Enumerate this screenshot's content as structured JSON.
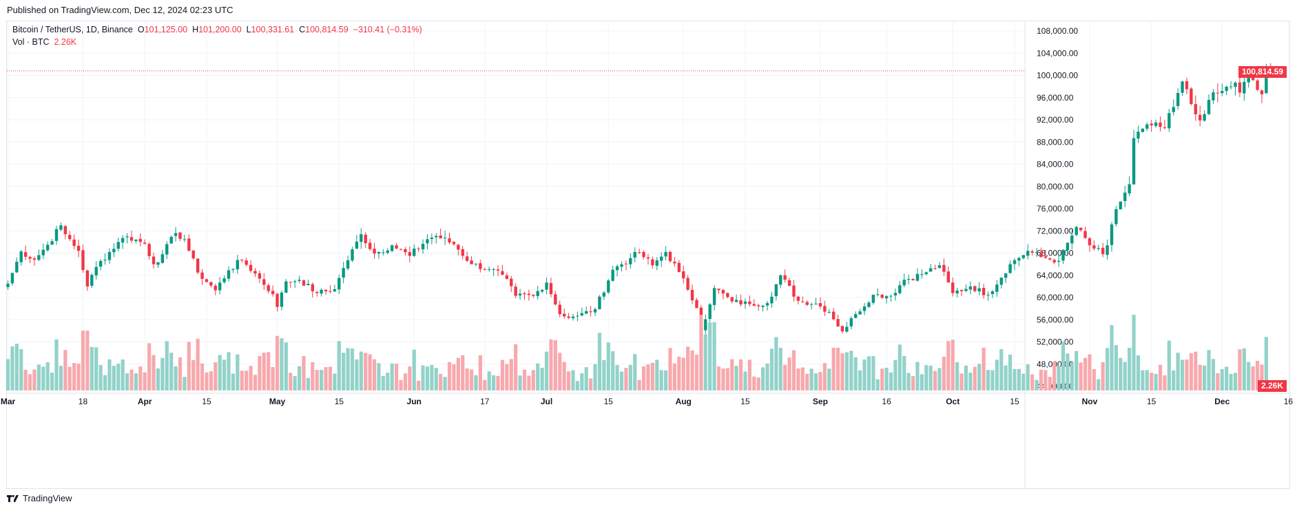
{
  "header": {
    "published": "Published on TradingView.com, Dec 12, 2024 02:23 UTC"
  },
  "legend": {
    "symbol": "Bitcoin / TetherUS, 1D, Binance",
    "o_label": "O",
    "o_value": "101,125.00",
    "h_label": "H",
    "h_value": "101,200.00",
    "l_label": "L",
    "l_value": "100,331.61",
    "c_label": "C",
    "c_value": "100,814.59",
    "change": "−310.41 (−0.31%)",
    "vol_label": "Vol · BTC",
    "vol_value": "2.26K"
  },
  "price_tag": "100,814.59",
  "volume_tag": "2.26K",
  "footer": {
    "brand": "TradingView"
  },
  "colors": {
    "up": "#089981",
    "down": "#f23645",
    "vol_up": "#92d2c9",
    "vol_down": "#f7a9ad",
    "grid": "#f0f3fa"
  },
  "chart_data": {
    "type": "candlestick",
    "title": "",
    "y_axis": {
      "min": 46000,
      "max": 110000,
      "ticks": [
        "108,000.00",
        "104,000.00",
        "100,000.00",
        "96,000.00",
        "92,000.00",
        "88,000.00",
        "84,000.00",
        "80,000.00",
        "76,000.00",
        "72,000.00",
        "68,000.00",
        "64,000.00",
        "60,000.00",
        "56,000.00",
        "52,000.00",
        "48,000.00",
        "44,000.00"
      ],
      "tick_values": [
        108000,
        104000,
        100000,
        96000,
        92000,
        88000,
        84000,
        80000,
        76000,
        72000,
        68000,
        64000,
        60000,
        56000,
        52000,
        48000,
        44000
      ]
    },
    "x_axis": {
      "start_date": "2024-03-01",
      "end_date": "2024-12-12",
      "labels": [
        {
          "text": "Mar",
          "date": "2024-03-01"
        },
        {
          "text": "18",
          "date": "2024-03-18"
        },
        {
          "text": "Apr",
          "date": "2024-04-01"
        },
        {
          "text": "15",
          "date": "2024-04-15"
        },
        {
          "text": "May",
          "date": "2024-05-01"
        },
        {
          "text": "15",
          "date": "2024-05-15"
        },
        {
          "text": "Jun",
          "date": "2024-06-01"
        },
        {
          "text": "17",
          "date": "2024-06-17"
        },
        {
          "text": "Jul",
          "date": "2024-07-01"
        },
        {
          "text": "15",
          "date": "2024-07-15"
        },
        {
          "text": "Aug",
          "date": "2024-08-01"
        },
        {
          "text": "15",
          "date": "2024-08-15"
        },
        {
          "text": "Sep",
          "date": "2024-09-01"
        },
        {
          "text": "16",
          "date": "2024-09-16"
        },
        {
          "text": "Oct",
          "date": "2024-10-01"
        },
        {
          "text": "15",
          "date": "2024-10-15"
        },
        {
          "text": "Nov",
          "date": "2024-11-01"
        },
        {
          "text": "15",
          "date": "2024-11-15"
        },
        {
          "text": "Dec",
          "date": "2024-12-01"
        },
        {
          "text": "16",
          "date": "2024-12-16"
        }
      ]
    },
    "last_close": 100814.59,
    "last_volume_k": 2.26,
    "close_anchors": [
      [
        "2024-03-01",
        62500
      ],
      [
        "2024-03-04",
        68300
      ],
      [
        "2024-03-07",
        66800
      ],
      [
        "2024-03-10",
        69500
      ],
      [
        "2024-03-13",
        73000
      ],
      [
        "2024-03-14",
        71400
      ],
      [
        "2024-03-17",
        68400
      ],
      [
        "2024-03-19",
        62000
      ],
      [
        "2024-03-21",
        65500
      ],
      [
        "2024-03-26",
        70000
      ],
      [
        "2024-03-28",
        71000
      ],
      [
        "2024-04-01",
        69700
      ],
      [
        "2024-04-03",
        66000
      ],
      [
        "2024-04-05",
        67800
      ],
      [
        "2024-04-08",
        71600
      ],
      [
        "2024-04-10",
        70500
      ],
      [
        "2024-04-13",
        64500
      ],
      [
        "2024-04-17",
        61300
      ],
      [
        "2024-04-20",
        64900
      ],
      [
        "2024-04-23",
        66800
      ],
      [
        "2024-04-27",
        63400
      ],
      [
        "2024-04-30",
        60600
      ],
      [
        "2024-05-01",
        58300
      ],
      [
        "2024-05-03",
        62900
      ],
      [
        "2024-05-06",
        63200
      ],
      [
        "2024-05-10",
        60800
      ],
      [
        "2024-05-14",
        61500
      ],
      [
        "2024-05-16",
        65300
      ],
      [
        "2024-05-20",
        71400
      ],
      [
        "2024-05-23",
        67900
      ],
      [
        "2024-05-27",
        69400
      ],
      [
        "2024-05-31",
        67500
      ],
      [
        "2024-06-04",
        70500
      ],
      [
        "2024-06-06",
        71100
      ],
      [
        "2024-06-10",
        69600
      ],
      [
        "2024-06-14",
        66000
      ],
      [
        "2024-06-18",
        65100
      ],
      [
        "2024-06-21",
        64100
      ],
      [
        "2024-06-24",
        60300
      ],
      [
        "2024-06-28",
        60300
      ],
      [
        "2024-07-01",
        62700
      ],
      [
        "2024-07-04",
        57000
      ],
      [
        "2024-07-05",
        56600
      ],
      [
        "2024-07-08",
        56700
      ],
      [
        "2024-07-12",
        57900
      ],
      [
        "2024-07-16",
        65000
      ],
      [
        "2024-07-20",
        67100
      ],
      [
        "2024-07-22",
        68100
      ],
      [
        "2024-07-25",
        65800
      ],
      [
        "2024-07-28",
        68200
      ],
      [
        "2024-07-31",
        64600
      ],
      [
        "2024-08-02",
        61400
      ],
      [
        "2024-08-04",
        58100
      ],
      [
        "2024-08-05",
        54000
      ],
      [
        "2024-08-08",
        61700
      ],
      [
        "2024-08-12",
        59300
      ],
      [
        "2024-08-16",
        58800
      ],
      [
        "2024-08-20",
        59000
      ],
      [
        "2024-08-23",
        64000
      ],
      [
        "2024-08-27",
        59400
      ],
      [
        "2024-08-31",
        58900
      ],
      [
        "2024-09-03",
        57400
      ],
      [
        "2024-09-06",
        53900
      ],
      [
        "2024-09-09",
        57000
      ],
      [
        "2024-09-13",
        60500
      ],
      [
        "2024-09-17",
        60300
      ],
      [
        "2024-09-20",
        63200
      ],
      [
        "2024-09-24",
        64200
      ],
      [
        "2024-09-28",
        65800
      ],
      [
        "2024-10-01",
        60800
      ],
      [
        "2024-10-05",
        62000
      ],
      [
        "2024-10-09",
        60500
      ],
      [
        "2024-10-14",
        66000
      ],
      [
        "2024-10-18",
        68400
      ],
      [
        "2024-10-21",
        67300
      ],
      [
        "2024-10-25",
        66600
      ],
      [
        "2024-10-29",
        72700
      ],
      [
        "2024-11-01",
        69400
      ],
      [
        "2024-11-04",
        67800
      ],
      [
        "2024-11-05",
        69400
      ],
      [
        "2024-11-07",
        75900
      ],
      [
        "2024-11-10",
        80400
      ],
      [
        "2024-11-11",
        88700
      ],
      [
        "2024-11-13",
        90400
      ],
      [
        "2024-11-15",
        91000
      ],
      [
        "2024-11-18",
        90500
      ],
      [
        "2024-11-20",
        94300
      ],
      [
        "2024-11-22",
        98900
      ],
      [
        "2024-11-25",
        93000
      ],
      [
        "2024-11-26",
        91900
      ],
      [
        "2024-11-28",
        95600
      ],
      [
        "2024-12-01",
        97200
      ],
      [
        "2024-12-04",
        98700
      ],
      [
        "2024-12-05",
        96900
      ],
      [
        "2024-12-07",
        99900
      ],
      [
        "2024-12-09",
        97400
      ],
      [
        "2024-12-10",
        96600
      ],
      [
        "2024-12-11",
        101100
      ],
      [
        "2024-12-12",
        100814.59
      ]
    ],
    "volume_axis_note": "volume bars in lower pane, relative scale"
  }
}
